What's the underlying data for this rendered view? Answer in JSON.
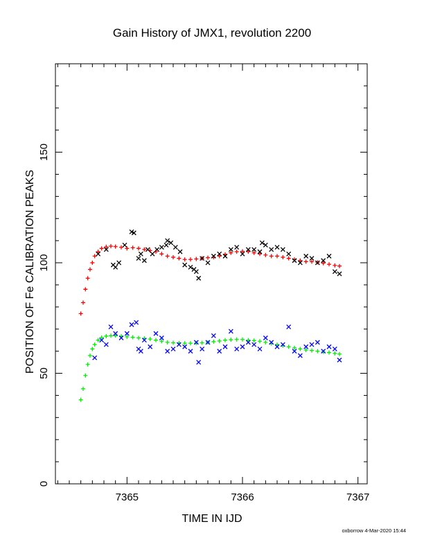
{
  "chart_data": {
    "type": "scatter",
    "title": "Gain History of JMX1, revolution 2200",
    "xlabel": "TIME IN IJD",
    "ylabel": "POSITION OF Fe CALIBRATION PEAKS",
    "xlim": [
      7364.38,
      7367.08
    ],
    "ylim": [
      0,
      190
    ],
    "xticks": [
      7365,
      7366,
      7367
    ],
    "yticks": [
      0,
      50,
      100,
      150
    ],
    "footer": "oxborrow  4-Mar-2020 15:44",
    "grid": false,
    "series": [
      {
        "color": "#ff0000",
        "marker": "+",
        "x": [
          7364.6,
          7364.62,
          7364.64,
          7364.66,
          7364.68,
          7364.7,
          7364.72,
          7364.75,
          7364.78,
          7364.82,
          7364.86,
          7364.9,
          7364.95,
          7365.0,
          7365.05,
          7365.1,
          7365.15,
          7365.2,
          7365.25,
          7365.3,
          7365.35,
          7365.4,
          7365.45,
          7365.5,
          7365.55,
          7365.6,
          7365.65,
          7365.7,
          7365.75,
          7365.8,
          7365.85,
          7365.9,
          7365.95,
          7366.0,
          7366.05,
          7366.1,
          7366.15,
          7366.2,
          7366.25,
          7366.3,
          7366.35,
          7366.4,
          7366.45,
          7366.5,
          7366.55,
          7366.6,
          7366.65,
          7366.7,
          7366.75,
          7366.8,
          7366.84
        ],
        "y": [
          77,
          82,
          88,
          93,
          97,
          100,
          103,
          105,
          106.5,
          107.2,
          107.5,
          107.3,
          107,
          106.5,
          106.8,
          106.5,
          106,
          105.5,
          105,
          104,
          103,
          102.5,
          102,
          101.5,
          101.5,
          101.7,
          102,
          102.3,
          102.5,
          103,
          103.8,
          104.5,
          105,
          105.2,
          105,
          104.5,
          104,
          103.5,
          103,
          103,
          102.5,
          102,
          101.5,
          101,
          100.5,
          100.5,
          100.2,
          99.8,
          99.3,
          98.8,
          98.5
        ]
      },
      {
        "color": "#000000",
        "marker": "x",
        "x": [
          7364.75,
          7364.82,
          7364.88,
          7364.9,
          7364.93,
          7364.98,
          7365.04,
          7365.06,
          7365.1,
          7365.12,
          7365.15,
          7365.18,
          7365.22,
          7365.26,
          7365.3,
          7365.34,
          7365.35,
          7365.38,
          7365.42,
          7365.46,
          7365.5,
          7365.55,
          7365.58,
          7365.6,
          7365.62,
          7365.65,
          7365.7,
          7365.75,
          7365.8,
          7365.85,
          7365.9,
          7365.95,
          7366.0,
          7366.05,
          7366.1,
          7366.15,
          7366.17,
          7366.2,
          7366.25,
          7366.3,
          7366.35,
          7366.4,
          7366.45,
          7366.5,
          7366.55,
          7366.6,
          7366.65,
          7366.7,
          7366.75,
          7366.8,
          7366.84
        ],
        "y": [
          104,
          106,
          99,
          98,
          100,
          108,
          114,
          113.5,
          102,
          104,
          101,
          106,
          104,
          106,
          107,
          108,
          110,
          109,
          107,
          105,
          99,
          98,
          97,
          96,
          93,
          102,
          100,
          103,
          104,
          103,
          106,
          107,
          104,
          106,
          106,
          105,
          109,
          108,
          106,
          107,
          106,
          104,
          101,
          100,
          103,
          102,
          100,
          101,
          103,
          96,
          95
        ]
      },
      {
        "color": "#00ee00",
        "marker": "+",
        "x": [
          7364.6,
          7364.62,
          7364.64,
          7364.66,
          7364.68,
          7364.7,
          7364.72,
          7364.75,
          7364.78,
          7364.82,
          7364.86,
          7364.9,
          7364.95,
          7365.0,
          7365.05,
          7365.1,
          7365.15,
          7365.2,
          7365.25,
          7365.3,
          7365.35,
          7365.4,
          7365.45,
          7365.5,
          7365.55,
          7365.6,
          7365.65,
          7365.7,
          7365.75,
          7365.8,
          7365.85,
          7365.9,
          7365.95,
          7366.0,
          7366.05,
          7366.1,
          7366.15,
          7366.2,
          7366.25,
          7366.3,
          7366.35,
          7366.4,
          7366.45,
          7366.5,
          7366.55,
          7366.6,
          7366.65,
          7366.7,
          7366.75,
          7366.8,
          7366.84
        ],
        "y": [
          38,
          43,
          49,
          54,
          58,
          61,
          63,
          65,
          66.2,
          66.8,
          67,
          67,
          66.8,
          66.5,
          66.3,
          66,
          65.8,
          65.5,
          65,
          64.5,
          64,
          63.8,
          63.7,
          63.6,
          63.6,
          63.7,
          63.8,
          64,
          64.3,
          64.6,
          65,
          65.2,
          65.3,
          65.3,
          65,
          64.8,
          64.5,
          64,
          63.5,
          63,
          62.5,
          62,
          61.5,
          61,
          60.5,
          60.3,
          60,
          59.7,
          59.4,
          59,
          58.7
        ]
      },
      {
        "color": "#0000ff",
        "marker": "x",
        "x": [
          7364.72,
          7364.78,
          7364.82,
          7364.86,
          7364.9,
          7364.95,
          7365.0,
          7365.04,
          7365.08,
          7365.1,
          7365.12,
          7365.15,
          7365.2,
          7365.25,
          7365.3,
          7365.35,
          7365.4,
          7365.45,
          7365.5,
          7365.55,
          7365.6,
          7365.62,
          7365.65,
          7365.7,
          7365.75,
          7365.8,
          7365.85,
          7365.9,
          7365.95,
          7366.0,
          7366.05,
          7366.1,
          7366.15,
          7366.2,
          7366.25,
          7366.3,
          7366.35,
          7366.4,
          7366.45,
          7366.5,
          7366.55,
          7366.6,
          7366.65,
          7366.7,
          7366.75,
          7366.8,
          7366.84
        ],
        "y": [
          57,
          65,
          63,
          71,
          68,
          66,
          68,
          72,
          73,
          61,
          60,
          65,
          62,
          68,
          66,
          60,
          61,
          63,
          62,
          60,
          64,
          55,
          61,
          64,
          67,
          60,
          62,
          69,
          61,
          62,
          64,
          63,
          61,
          66,
          64,
          62,
          63,
          71,
          60,
          58,
          62,
          63,
          64,
          60,
          62,
          61,
          56
        ]
      }
    ]
  }
}
